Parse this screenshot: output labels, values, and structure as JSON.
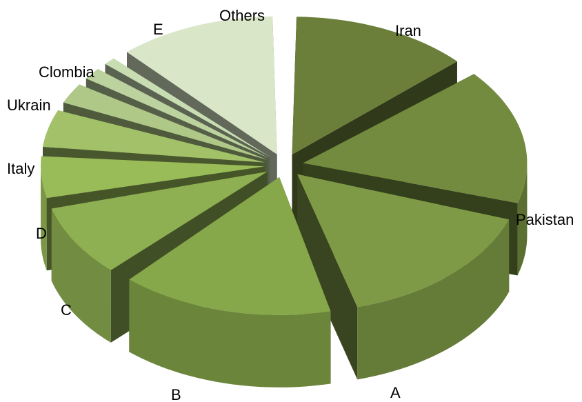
{
  "chart_data": {
    "type": "pie",
    "style": "3d-exploded",
    "title": "",
    "legend": "none",
    "slices": [
      {
        "label": "Iran",
        "value": 13.5,
        "color": "#6b7f3a"
      },
      {
        "label": "Pakistan",
        "value": 16.5,
        "color": "#738b3e"
      },
      {
        "label": "A",
        "value": 16.0,
        "color": "#7e9a46"
      },
      {
        "label": "B",
        "value": 16.0,
        "color": "#86a74a"
      },
      {
        "label": "C",
        "value": 9.0,
        "color": "#8fb052"
      },
      {
        "label": "D",
        "value": 5.5,
        "color": "#99bc58"
      },
      {
        "label": "Italy",
        "value": 5.0,
        "color": "#a2c168"
      },
      {
        "label": "Ukrain",
        "value": 3.0,
        "color": "#afc888"
      },
      {
        "label": "Clombia",
        "value": 2.0,
        "color": "#bcd39f"
      },
      {
        "label": "E",
        "value": 1.5,
        "color": "#c9ddb3"
      },
      {
        "label": "Others",
        "value": 12.0,
        "color": "#d9e6c8"
      }
    ]
  }
}
